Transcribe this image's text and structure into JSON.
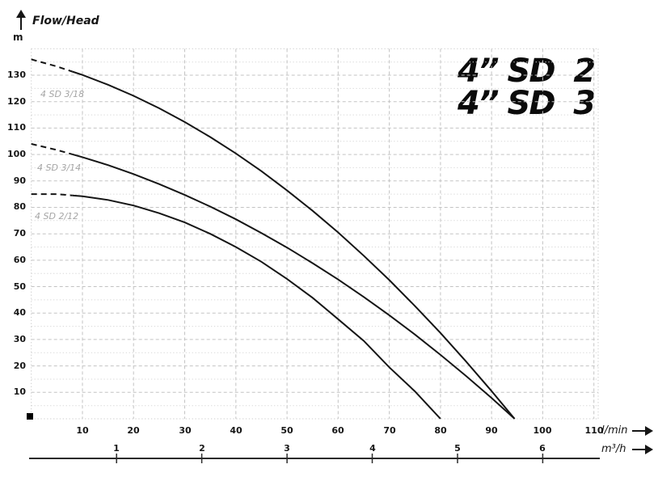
{
  "header": {
    "flow_head_label": "Flow/Head",
    "y_unit_label": "m"
  },
  "title": {
    "line1": "4” SD  2",
    "line2": "4” SD  3"
  },
  "x_axis": {
    "lmin_labels": [
      10,
      20,
      30,
      40,
      50,
      60,
      70,
      80,
      90,
      100,
      110
    ],
    "lmin_unit": "l/min",
    "m3h_labels": [
      1,
      2,
      3,
      4,
      5,
      6
    ],
    "m3h_unit": "m³/h"
  },
  "y_axis": {
    "labels": [
      130,
      120,
      110,
      100,
      90,
      80,
      70,
      60,
      50,
      40,
      30,
      20,
      10
    ]
  },
  "colors": {
    "curve": "#151515",
    "grid_major": "#c3c3c3",
    "grid_minor": "#d8d8d8",
    "grid_edge": "#cccccc",
    "curve_label": "#a6a6a6",
    "axis_line": "#2b2b2b",
    "text": "#161616"
  },
  "chart_data": {
    "type": "line",
    "title": "4” SD 2 / 4” SD 3",
    "ylabel": "m",
    "xlabel_primary": "l/min",
    "xlabel_secondary": "m³/h",
    "x_range_lmin": [
      0,
      112
    ],
    "y_range_m": [
      0,
      140
    ],
    "grid": "dashed major every 10, dotted minor every 5 m; legend none",
    "series": [
      {
        "name": "4 SD 3/18",
        "dashed_until_lmin": 8,
        "points": [
          [
            0,
            136
          ],
          [
            5,
            133.3
          ],
          [
            10,
            130.1
          ],
          [
            15,
            126.4
          ],
          [
            20,
            122.2
          ],
          [
            25,
            117.5
          ],
          [
            30,
            112.3
          ],
          [
            35,
            106.6
          ],
          [
            40,
            100.4
          ],
          [
            45,
            93.7
          ],
          [
            50,
            86.4
          ],
          [
            55,
            78.7
          ],
          [
            60,
            70.5
          ],
          [
            65,
            61.7
          ],
          [
            70,
            52.5
          ],
          [
            75,
            42.7
          ],
          [
            80,
            32.5
          ],
          [
            85,
            21.7
          ],
          [
            90,
            10.5
          ],
          [
            94.5,
            0
          ]
        ]
      },
      {
        "name": "4 SD 3/14",
        "dashed_until_lmin": 8,
        "points": [
          [
            0,
            104
          ],
          [
            5,
            101.7
          ],
          [
            10,
            99.0
          ],
          [
            15,
            96.0
          ],
          [
            20,
            92.6
          ],
          [
            25,
            88.8
          ],
          [
            30,
            84.7
          ],
          [
            35,
            80.3
          ],
          [
            40,
            75.5
          ],
          [
            45,
            70.3
          ],
          [
            50,
            64.8
          ],
          [
            55,
            58.9
          ],
          [
            60,
            52.7
          ],
          [
            65,
            46.1
          ],
          [
            70,
            39.2
          ],
          [
            75,
            31.9
          ],
          [
            80,
            24.2
          ],
          [
            85,
            16.2
          ],
          [
            90,
            7.9
          ],
          [
            94.5,
            0
          ]
        ]
      },
      {
        "name": "4 SD 2/12",
        "dashed_until_lmin": 8,
        "points": [
          [
            0,
            85
          ],
          [
            5,
            85.0
          ],
          [
            10,
            84.2
          ],
          [
            15,
            82.8
          ],
          [
            20,
            80.7
          ],
          [
            25,
            77.8
          ],
          [
            30,
            74.3
          ],
          [
            35,
            70.0
          ],
          [
            40,
            65.0
          ],
          [
            45,
            59.4
          ],
          [
            50,
            52.9
          ],
          [
            55,
            45.8
          ],
          [
            60,
            37.7
          ],
          [
            65,
            29.5
          ],
          [
            70,
            19.5
          ],
          [
            75,
            10.4
          ],
          [
            80,
            0
          ]
        ]
      }
    ]
  }
}
